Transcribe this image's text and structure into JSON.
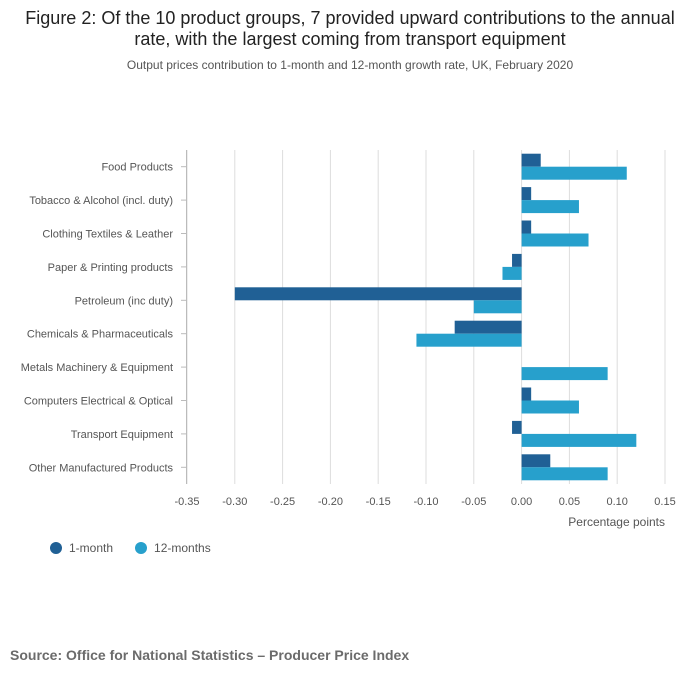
{
  "header": {
    "title": "Figure 2: Of the 10 product groups, 7 provided upward contributions to the annual rate, with the largest coming from transport equipment",
    "subtitle": "Output prices contribution to 1-month and 12-month growth rate, UK, February 2020"
  },
  "source": "Source: Office for National Statistics – Producer Price Index",
  "colors": {
    "one_month": "#206095",
    "twelve_months": "#27a0cc",
    "grid": "#dddddd",
    "axis_text": "#555555"
  },
  "chart_data": {
    "type": "bar",
    "orientation": "horizontal",
    "title": "Figure 2: Of the 10 product groups, 7 provided upward contributions to the annual rate, with the largest coming from transport equipment",
    "subtitle": "Output prices contribution to 1-month and 12-month growth rate, UK, February 2020",
    "xlabel": "Percentage points",
    "ylabel": "",
    "xlim": [
      -0.35,
      0.15
    ],
    "xticks": [
      -0.35,
      -0.3,
      -0.25,
      -0.2,
      -0.15,
      -0.1,
      -0.05,
      0.0,
      0.05,
      0.1,
      0.15
    ],
    "xtick_labels": [
      "-0.35",
      "-0.30",
      "-0.25",
      "-0.20",
      "-0.15",
      "-0.10",
      "-0.05",
      "0.00",
      "0.05",
      "0.10",
      "0.15"
    ],
    "grid": true,
    "legend_position": "bottom-left",
    "categories": [
      "Food Products",
      "Tobacco & Alcohol (incl. duty)",
      "Clothing Textiles & Leather",
      "Paper & Printing products",
      "Petroleum (inc duty)",
      "Chemicals & Pharmaceuticals",
      "Metals Machinery & Equipment",
      "Computers Electrical & Optical",
      "Transport Equipment",
      "Other Manufactured Products"
    ],
    "series": [
      {
        "name": "1-month",
        "values": [
          0.02,
          0.01,
          0.01,
          -0.01,
          -0.3,
          -0.07,
          0.0,
          0.01,
          -0.01,
          0.03
        ]
      },
      {
        "name": "12-months",
        "values": [
          0.11,
          0.06,
          0.07,
          -0.02,
          -0.05,
          -0.11,
          0.09,
          0.06,
          0.12,
          0.09
        ]
      }
    ]
  }
}
